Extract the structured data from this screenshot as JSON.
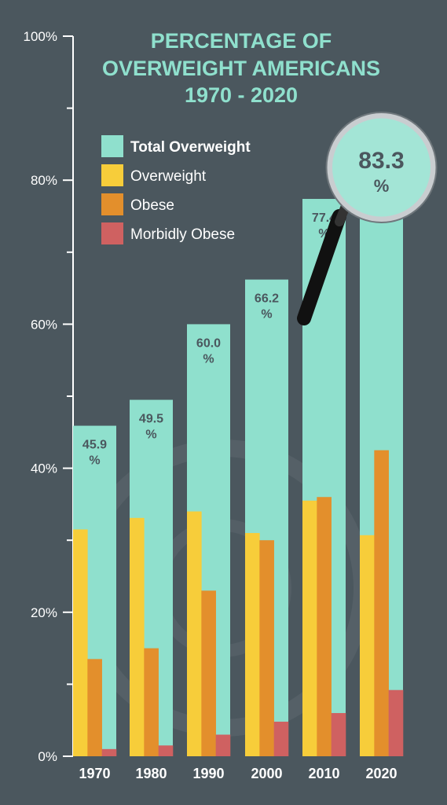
{
  "colors": {
    "background": "#4b575e",
    "total_overweight": "#8fe0cd",
    "overweight": "#f7cd3a",
    "obese": "#e38f2c",
    "morbidly_obese": "#cf6161",
    "axis": "#ffffff",
    "title": "#8fe0cd"
  },
  "chart_data": {
    "type": "bar",
    "title": [
      "PERCENTAGE OF",
      "OVERWEIGHT AMERICANS",
      "1970 - 2020"
    ],
    "xlabel": "",
    "ylabel": "",
    "ylim": [
      0,
      100
    ],
    "yticks": [
      "0%",
      "20%",
      "40%",
      "60%",
      "80%",
      "100%"
    ],
    "categories": [
      "1970",
      "1980",
      "1990",
      "2000",
      "2010",
      "2020"
    ],
    "series": [
      {
        "name": "Total Overweight",
        "values": [
          45.9,
          49.5,
          60.0,
          66.2,
          77.4,
          83.3
        ]
      },
      {
        "name": "Overweight",
        "values": [
          31.5,
          33.1,
          34.0,
          31.0,
          35.5,
          30.7
        ]
      },
      {
        "name": "Obese",
        "values": [
          13.5,
          15.0,
          23.0,
          30.0,
          36.0,
          42.5
        ]
      },
      {
        "name": "Morbidly Obese",
        "values": [
          1.0,
          1.5,
          3.0,
          4.8,
          6.0,
          9.2
        ]
      }
    ],
    "total_labels": [
      "45.9",
      "49.5",
      "60.0",
      "66.2",
      "77.4",
      "83.3"
    ],
    "label_unit": "%",
    "legend_position": "top-left",
    "highlight": {
      "category": "2020",
      "value_text": "83.3",
      "unit": "%",
      "icon": "magnifying-glass-icon"
    }
  }
}
